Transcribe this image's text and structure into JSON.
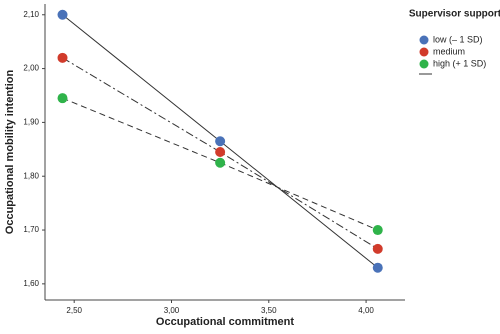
{
  "chart_data": {
    "type": "line",
    "x_label": "Occupational commitment",
    "y_label": "Occupational mobility intention",
    "legend_title": "Supervisor support",
    "legend_position": "right",
    "x": [
      2.44,
      3.25,
      4.06
    ],
    "series": [
      {
        "name": "low (– 1 SD)",
        "color": "#4a72b8",
        "line_style": "solid",
        "values": [
          2.1,
          1.865,
          1.63
        ]
      },
      {
        "name": "medium",
        "color": "#d13b2b",
        "line_style": "dashdot",
        "values": [
          2.02,
          1.845,
          1.665
        ]
      },
      {
        "name": "high (+ 1 SD)",
        "color": "#2fb34a",
        "line_style": "dashed",
        "values": [
          1.945,
          1.825,
          1.7
        ]
      }
    ],
    "xlim": [
      2.35,
      4.2
    ],
    "xticks": [
      {
        "value": 2.5,
        "label": "2,50"
      },
      {
        "value": 3.0,
        "label": "3,00"
      },
      {
        "value": 3.5,
        "label": "3,50"
      },
      {
        "value": 4.0,
        "label": "4,00"
      }
    ],
    "ylim": [
      1.57,
      2.12
    ],
    "yticks": [
      {
        "value": 1.6,
        "label": "1,60"
      },
      {
        "value": 1.7,
        "label": "1,70"
      },
      {
        "value": 1.8,
        "label": "1,80"
      },
      {
        "value": 1.9,
        "label": "1,90"
      },
      {
        "value": 2.0,
        "label": "2,00"
      },
      {
        "value": 2.1,
        "label": "2,10"
      }
    ]
  }
}
